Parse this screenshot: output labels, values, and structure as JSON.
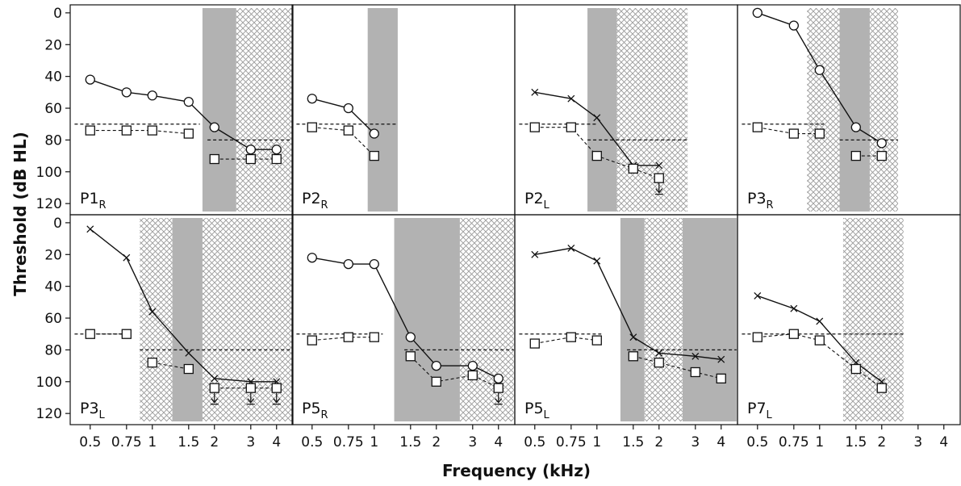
{
  "figure": {
    "ylabel": "Threshold (dB HL)",
    "xlabel": "Frequency (kHz)",
    "x_ticks": [
      0.5,
      0.75,
      1,
      1.5,
      2,
      3,
      4
    ],
    "x_tick_labels": [
      "0.5",
      "0.75",
      "1",
      "1.5",
      "2",
      "3",
      "4"
    ],
    "y_ticks": [
      0,
      20,
      40,
      60,
      80,
      100,
      120
    ],
    "y_tick_labels": [
      "0",
      "20",
      "40",
      "60",
      "80",
      "100",
      "120"
    ]
  },
  "colors": {
    "shaded": "#b2b2b2",
    "hatch": "#9a9a9a",
    "line": "#111111"
  },
  "chart_data": [
    {
      "type": "line",
      "panel": "P1_R",
      "label": "P1",
      "sub": "R",
      "xscale": "log",
      "xlim": [
        0.4,
        4.8
      ],
      "ylim": [
        125,
        -3
      ],
      "y_inverted": true,
      "shaded_bands": [
        [
          1.75,
          2.55
        ]
      ],
      "hatched_bands": [
        [
          2.55,
          4.75
        ]
      ],
      "series": [
        {
          "marker": "circle",
          "line": "solid",
          "x": [
            0.5,
            0.75,
            1,
            1.5,
            2,
            3,
            4
          ],
          "y": [
            42,
            50,
            52,
            56,
            72,
            86,
            86
          ]
        },
        {
          "marker": "square",
          "line": "dashed",
          "x": [
            0.5,
            0.75,
            1,
            1.5
          ],
          "y": [
            74,
            74,
            74,
            76
          ]
        },
        {
          "marker": "square",
          "line": "dashed",
          "x": [
            2,
            3,
            4
          ],
          "y": [
            92,
            92,
            92
          ]
        }
      ],
      "reference_lines": [
        {
          "x": [
            0.42,
            1.7
          ],
          "y": 70
        },
        {
          "x": [
            1.85,
            4.75
          ],
          "y": 80
        }
      ]
    },
    {
      "type": "line",
      "panel": "P2_R",
      "label": "P2",
      "sub": "R",
      "xscale": "log",
      "xlim": [
        0.4,
        4.8
      ],
      "ylim": [
        125,
        -3
      ],
      "y_inverted": true,
      "shaded_bands": [
        [
          0.93,
          1.3
        ]
      ],
      "hatched_bands": [],
      "series": [
        {
          "marker": "circle",
          "line": "solid",
          "x": [
            0.5,
            0.75,
            1
          ],
          "y": [
            54,
            60,
            76
          ]
        },
        {
          "marker": "square",
          "line": "dashed",
          "x": [
            0.5,
            0.75,
            1
          ],
          "y": [
            72,
            74,
            90
          ]
        }
      ],
      "reference_lines": [
        {
          "x": [
            0.42,
            1.3
          ],
          "y": 70
        }
      ]
    },
    {
      "type": "line",
      "panel": "P2_L",
      "label": "P2",
      "sub": "L",
      "xscale": "log",
      "xlim": [
        0.4,
        4.8
      ],
      "ylim": [
        125,
        -3
      ],
      "y_inverted": true,
      "shaded_bands": [
        [
          0.9,
          1.25
        ]
      ],
      "hatched_bands": [
        [
          1.25,
          2.75
        ]
      ],
      "series": [
        {
          "marker": "cross",
          "line": "solid",
          "x": [
            0.5,
            0.75,
            1,
            1.5,
            2
          ],
          "y": [
            50,
            54,
            66,
            96,
            96
          ]
        },
        {
          "marker": "square",
          "line": "dashed",
          "x": [
            0.5,
            0.75,
            1,
            1.5,
            2
          ],
          "y": [
            72,
            72,
            90,
            98,
            104
          ]
        }
      ],
      "down_arrows": [
        {
          "x": 2,
          "y": 104
        }
      ],
      "reference_lines": [
        {
          "x": [
            0.42,
            1.0
          ],
          "y": 70
        },
        {
          "x": [
            0.9,
            2.75
          ],
          "y": 80
        }
      ]
    },
    {
      "type": "line",
      "panel": "P3_R",
      "label": "P3",
      "sub": "R",
      "xscale": "log",
      "xlim": [
        0.4,
        4.8
      ],
      "ylim": [
        125,
        -3
      ],
      "y_inverted": true,
      "shaded_bands": [
        [
          1.25,
          1.75
        ]
      ],
      "hatched_bands": [
        [
          0.87,
          1.25
        ],
        [
          1.75,
          2.4
        ]
      ],
      "series": [
        {
          "marker": "circle",
          "line": "solid",
          "x": [
            0.5,
            0.75,
            1,
            1.5,
            2
          ],
          "y": [
            0,
            8,
            36,
            72,
            82
          ]
        },
        {
          "marker": "square",
          "line": "dashed",
          "x": [
            0.5,
            0.75,
            1
          ],
          "y": [
            72,
            76,
            76
          ]
        },
        {
          "marker": "square",
          "line": "dashed",
          "x": [
            1.5,
            2
          ],
          "y": [
            90,
            90
          ]
        }
      ],
      "reference_lines": [
        {
          "x": [
            0.42,
            1.05
          ],
          "y": 70
        },
        {
          "x": [
            1.25,
            2.4
          ],
          "y": 80
        }
      ]
    },
    {
      "type": "line",
      "panel": "P3_L",
      "label": "P3",
      "sub": "L",
      "xscale": "log",
      "xlim": [
        0.4,
        4.8
      ],
      "ylim": [
        125,
        -3
      ],
      "y_inverted": true,
      "shaded_bands": [
        [
          1.25,
          1.75
        ]
      ],
      "hatched_bands": [
        [
          0.87,
          1.25
        ],
        [
          1.75,
          4.75
        ]
      ],
      "series": [
        {
          "marker": "cross",
          "line": "solid",
          "x": [
            0.5,
            0.75,
            1,
            1.5,
            2,
            3,
            4
          ],
          "y": [
            4,
            22,
            56,
            82,
            98,
            100,
            100
          ]
        },
        {
          "marker": "square",
          "line": "dashed",
          "x": [
            0.5,
            0.75
          ],
          "y": [
            70,
            70
          ]
        },
        {
          "marker": "square",
          "line": "dashed",
          "x": [
            1,
            1.5
          ],
          "y": [
            88,
            92
          ]
        },
        {
          "marker": "square",
          "line": "dashed",
          "x": [
            2,
            3,
            4
          ],
          "y": [
            104,
            104,
            104
          ]
        }
      ],
      "down_arrows": [
        {
          "x": 2,
          "y": 104
        },
        {
          "x": 3,
          "y": 104
        },
        {
          "x": 4,
          "y": 104
        }
      ],
      "reference_lines": [
        {
          "x": [
            0.42,
            0.75
          ],
          "y": 70
        },
        {
          "x": [
            0.87,
            4.75
          ],
          "y": 80
        }
      ]
    },
    {
      "type": "line",
      "panel": "P5_R",
      "label": "P5",
      "sub": "R",
      "xscale": "log",
      "xlim": [
        0.4,
        4.8
      ],
      "ylim": [
        125,
        -3
      ],
      "y_inverted": true,
      "shaded_bands": [
        [
          1.25,
          2.6
        ]
      ],
      "hatched_bands": [
        [
          2.6,
          4.75
        ]
      ],
      "series": [
        {
          "marker": "circle",
          "line": "solid",
          "x": [
            0.5,
            0.75,
            1,
            1.5,
            2,
            3,
            4
          ],
          "y": [
            22,
            26,
            26,
            72,
            90,
            90,
            98
          ]
        },
        {
          "marker": "square",
          "line": "dashed",
          "x": [
            0.5,
            0.75,
            1
          ],
          "y": [
            74,
            72,
            72
          ]
        },
        {
          "marker": "square",
          "line": "dashed",
          "x": [
            1.5,
            2,
            3,
            4
          ],
          "y": [
            84,
            100,
            96,
            104
          ]
        }
      ],
      "down_arrows": [
        {
          "x": 4,
          "y": 104
        }
      ],
      "reference_lines": [
        {
          "x": [
            0.42,
            1.1
          ],
          "y": 70
        },
        {
          "x": [
            1.4,
            4.75
          ],
          "y": 80
        }
      ]
    },
    {
      "type": "line",
      "panel": "P5_L",
      "label": "P5",
      "sub": "L",
      "xscale": "log",
      "xlim": [
        0.4,
        4.8
      ],
      "ylim": [
        125,
        -3
      ],
      "y_inverted": true,
      "shaded_bands": [
        [
          1.3,
          1.7
        ],
        [
          2.6,
          4.75
        ]
      ],
      "hatched_bands": [
        [
          1.7,
          2.6
        ]
      ],
      "series": [
        {
          "marker": "cross",
          "line": "solid",
          "x": [
            0.5,
            0.75,
            1,
            1.5,
            2,
            3,
            4
          ],
          "y": [
            20,
            16,
            24,
            72,
            82,
            84,
            86
          ]
        },
        {
          "marker": "square",
          "line": "dashed",
          "x": [
            0.5,
            0.75,
            1
          ],
          "y": [
            76,
            72,
            74
          ]
        },
        {
          "marker": "square",
          "line": "dashed",
          "x": [
            1.5,
            2,
            3,
            4
          ],
          "y": [
            84,
            88,
            94,
            98
          ]
        }
      ],
      "reference_lines": [
        {
          "x": [
            0.42,
            1.05
          ],
          "y": 70
        },
        {
          "x": [
            1.4,
            4.75
          ],
          "y": 80
        }
      ]
    },
    {
      "type": "line",
      "panel": "P7_L",
      "label": "P7",
      "sub": "L",
      "xscale": "log",
      "xlim": [
        0.4,
        4.8
      ],
      "ylim": [
        125,
        -3
      ],
      "y_inverted": true,
      "shaded_bands": [],
      "hatched_bands": [
        [
          1.3,
          2.55
        ]
      ],
      "series": [
        {
          "marker": "cross",
          "line": "solid",
          "x": [
            0.5,
            0.75,
            1,
            1.5,
            2
          ],
          "y": [
            46,
            54,
            62,
            88,
            100
          ]
        },
        {
          "marker": "square",
          "line": "dashed",
          "x": [
            0.5,
            0.75,
            1,
            1.5,
            2
          ],
          "y": [
            72,
            70,
            74,
            92,
            104
          ]
        }
      ],
      "reference_lines": [
        {
          "x": [
            0.42,
            2.55
          ],
          "y": 70
        }
      ]
    }
  ]
}
